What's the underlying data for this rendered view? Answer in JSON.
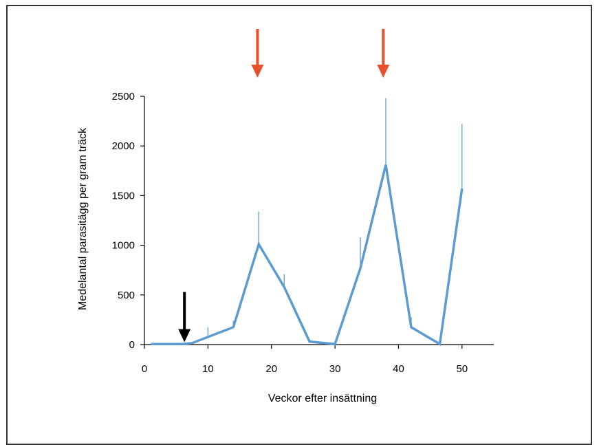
{
  "chart_data": {
    "type": "line",
    "title": "",
    "xlabel": "Veckor efter insättning",
    "ylabel": "Medelantal parasitägg per gram träck",
    "xlim": [
      0,
      55
    ],
    "ylim": [
      0,
      2500
    ],
    "x_ticks": [
      0,
      10,
      20,
      30,
      40,
      50
    ],
    "y_ticks": [
      0,
      500,
      1000,
      1500,
      2000,
      2500
    ],
    "grid": false,
    "legend": "none",
    "series": [
      {
        "color": "#5b9bd0",
        "x": [
          1,
          6,
          7.5,
          14,
          18,
          22,
          26,
          30,
          34,
          38,
          42,
          46.5,
          50
        ],
        "y": [
          5,
          5,
          15,
          175,
          1010,
          580,
          30,
          5,
          770,
          1810,
          175,
          5,
          1570
        ],
        "error_upper": [
          null,
          null,
          null,
          240,
          1340,
          710,
          null,
          null,
          1080,
          2480,
          275,
          null,
          2220
        ]
      }
    ],
    "extra_error_bars": [
      {
        "x": 10,
        "y": 90,
        "upper": 175
      }
    ],
    "annotations": [
      {
        "type": "arrow",
        "color": "#000000",
        "x": 6.3,
        "y_start": 530,
        "y_end": 10
      },
      {
        "type": "arrow",
        "color": "#e8502e",
        "x": 17.8,
        "above_plot": true
      },
      {
        "type": "arrow",
        "color": "#e8502e",
        "x": 37.6,
        "above_plot": true
      }
    ]
  }
}
